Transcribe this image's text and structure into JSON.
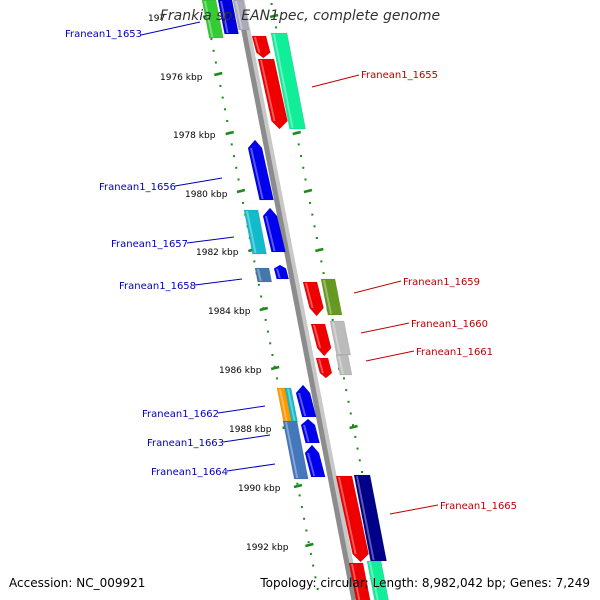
{
  "title": "Frankia sp. EAN1pec, complete genome",
  "footer": {
    "accession": "Accession: NC_009921",
    "summary": "Topology: circular; Length: 8,982,042 bp; Genes: 7,249"
  },
  "scale": {
    "labels": [
      "197",
      "1976 kbp",
      "1978 kbp",
      "1980 kbp",
      "1982 kbp",
      "1984 kbp",
      "1986 kbp",
      "1988 kbp",
      "1990 kbp",
      "1992 kbp"
    ]
  },
  "colors": {
    "backbone": "#8c8c8c",
    "left_label": "#0000bb",
    "right_label": "#bb0000",
    "tick": "#1a8a1a"
  },
  "left_genes": [
    {
      "label": "Franean1_1653"
    },
    {
      "label": "Franean1_1656"
    },
    {
      "label": "Franean1_1657"
    },
    {
      "label": "Franean1_1658"
    },
    {
      "label": "Franean1_1662"
    },
    {
      "label": "Franean1_1663"
    },
    {
      "label": "Franean1_1664"
    }
  ],
  "right_genes": [
    {
      "label": "Franean1_1655"
    },
    {
      "label": "Franean1_1659"
    },
    {
      "label": "Franean1_1660"
    },
    {
      "label": "Franean1_1661"
    },
    {
      "label": "Franean1_1665"
    }
  ]
}
